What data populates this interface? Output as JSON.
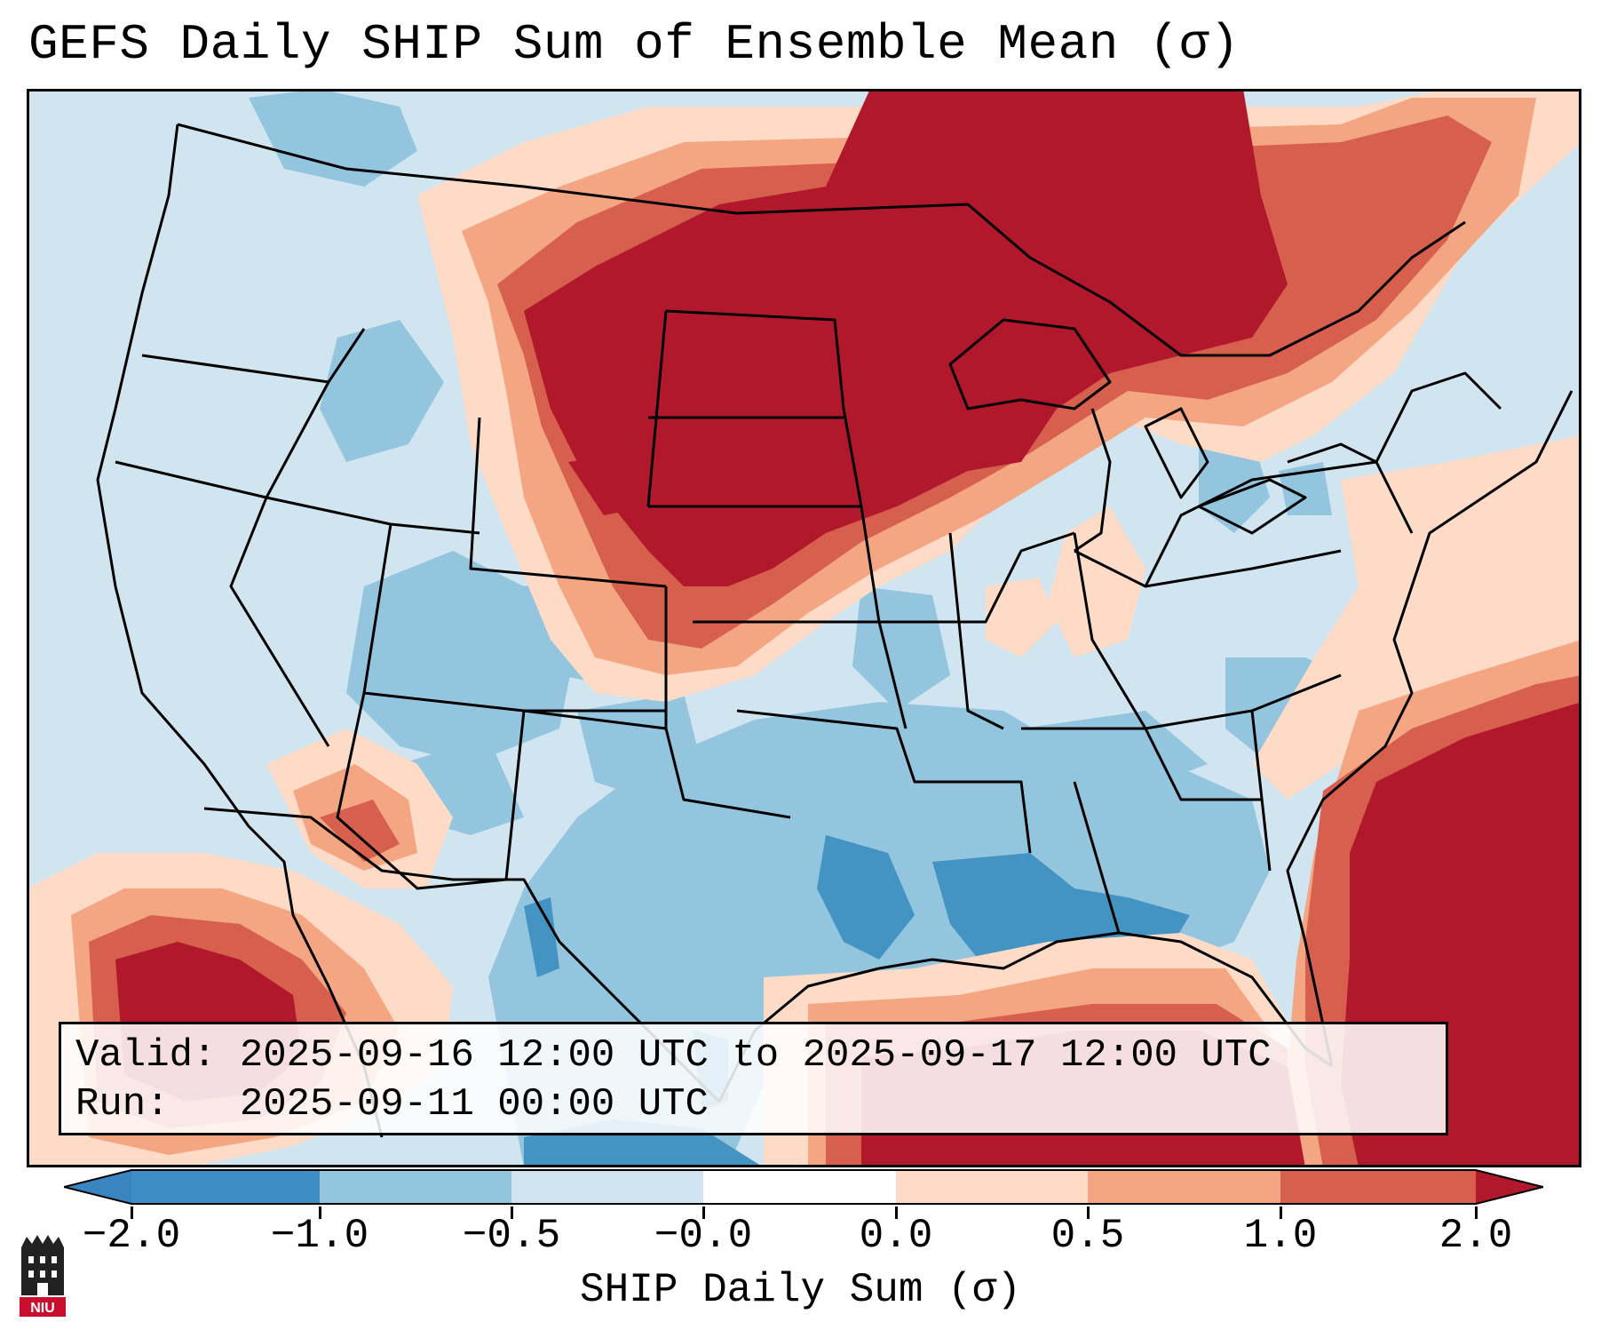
{
  "title": "GEFS Daily SHIP Sum of Ensemble Mean (σ)",
  "info": {
    "valid_label": "Valid:",
    "valid_value": "2025-09-16 12:00 UTC to 2025-09-17 12:00 UTC",
    "run_label": "Run:",
    "run_value": "2025-09-11 00:00 UTC"
  },
  "colorbar": {
    "label": "SHIP Daily Sum (σ)",
    "ticks": [
      "−2.0",
      "−1.0",
      "−0.5",
      "−0.0",
      "0.0",
      "0.5",
      "1.0",
      "2.0"
    ],
    "colors": {
      "below": "#3a84bf",
      "n2_n1": "#3d8cc4",
      "n1_n05": "#93c5df",
      "n05_0": "#d1e5f0",
      "zero_band": "#ffffff",
      "p0_05": "#fddbc7",
      "p05_1": "#f4a582",
      "p1_2": "#d6604d",
      "above": "#b2182b"
    }
  },
  "logo": {
    "text": "NIU",
    "name": "Northern Illinois University logo"
  },
  "colors": {
    "background": "#d1e5f0",
    "light_blue": "#93c5df",
    "medium_blue": "#4393c3",
    "pale_red": "#fddbc7",
    "light_red": "#f4a582",
    "red": "#d6604d",
    "dark_red": "#b2182b",
    "border": "#000000"
  }
}
